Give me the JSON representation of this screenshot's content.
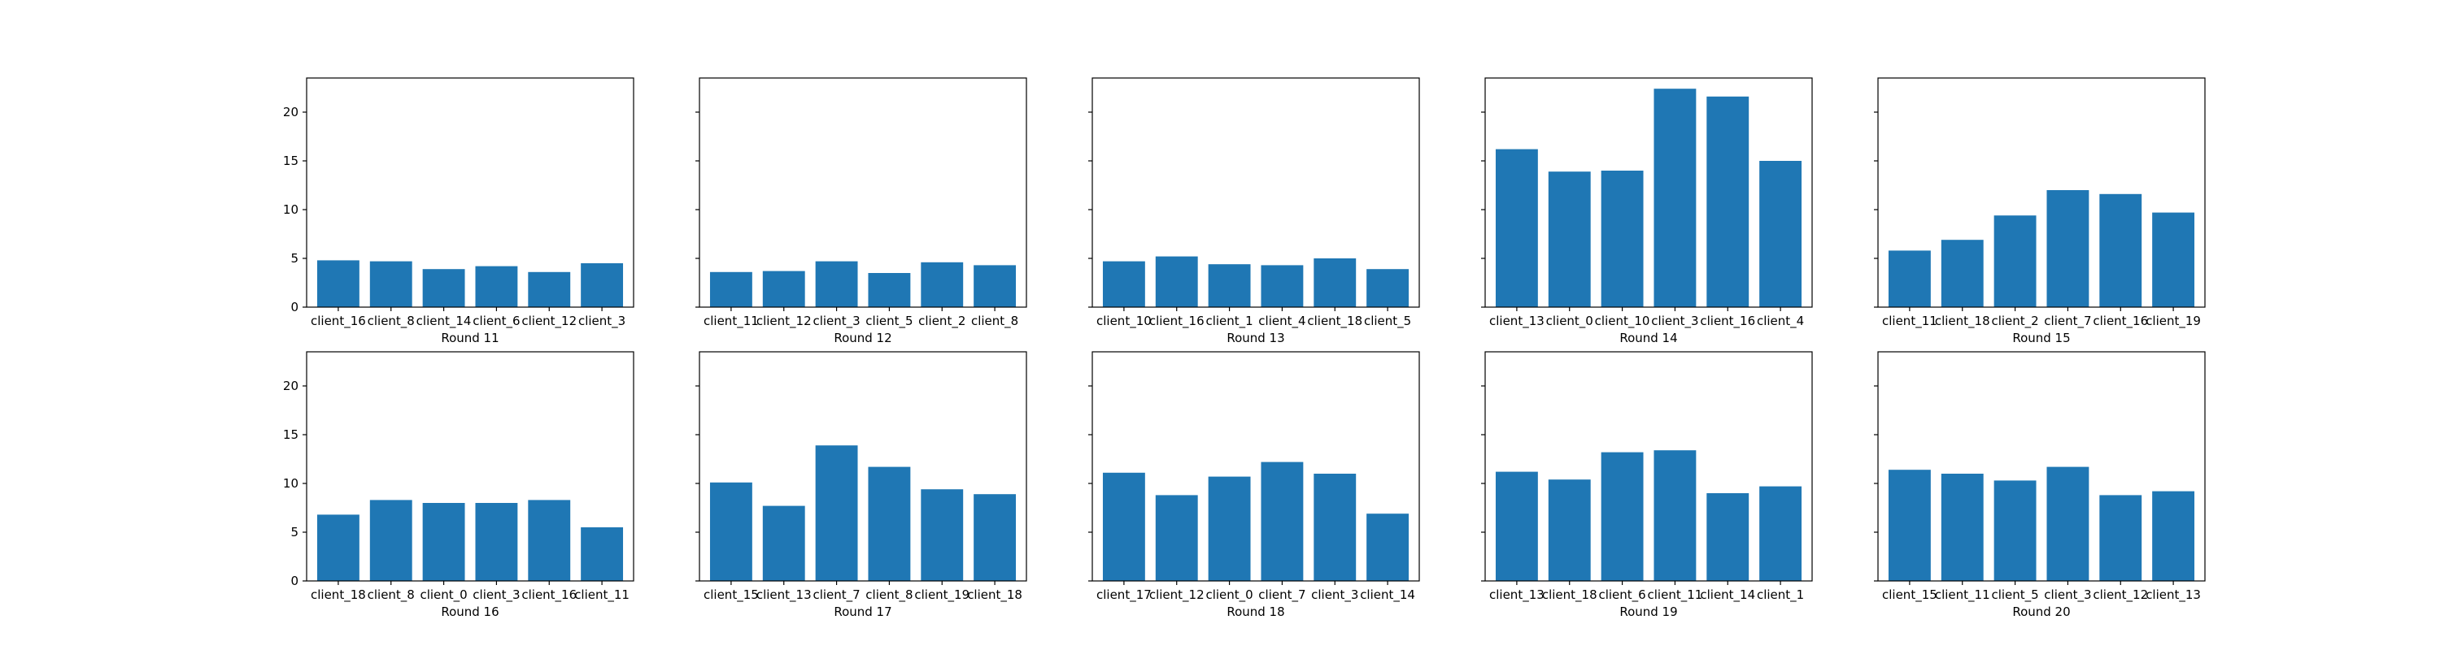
{
  "figure": {
    "background": "#ffffff",
    "bar_color": "#1f77b4",
    "layout": "2 rows x 5 columns",
    "shared_y_axis": true
  },
  "chart_data": [
    {
      "type": "bar",
      "xlabel": "Round 11",
      "ylabel": "",
      "ylim": [
        0,
        23.5
      ],
      "yticks": [
        0,
        5,
        10,
        15,
        20
      ],
      "categories": [
        "client_16",
        "client_8",
        "client_14",
        "client_6",
        "client_12",
        "client_3"
      ],
      "values": [
        4.8,
        4.7,
        3.9,
        4.2,
        3.6,
        4.5
      ]
    },
    {
      "type": "bar",
      "xlabel": "Round 12",
      "ylabel": "",
      "ylim": [
        0,
        23.5
      ],
      "yticks": [
        0,
        5,
        10,
        15,
        20
      ],
      "categories": [
        "client_11",
        "client_12",
        "client_3",
        "client_5",
        "client_2",
        "client_8"
      ],
      "values": [
        3.6,
        3.7,
        4.7,
        3.5,
        4.6,
        4.3
      ]
    },
    {
      "type": "bar",
      "xlabel": "Round 13",
      "ylabel": "",
      "ylim": [
        0,
        23.5
      ],
      "yticks": [
        0,
        5,
        10,
        15,
        20
      ],
      "categories": [
        "client_10",
        "client_16",
        "client_1",
        "client_4",
        "client_18",
        "client_5"
      ],
      "values": [
        4.7,
        5.2,
        4.4,
        4.3,
        5.0,
        3.9
      ]
    },
    {
      "type": "bar",
      "xlabel": "Round 14",
      "ylabel": "",
      "ylim": [
        0,
        23.5
      ],
      "yticks": [
        0,
        5,
        10,
        15,
        20
      ],
      "categories": [
        "client_13",
        "client_0",
        "client_10",
        "client_3",
        "client_16",
        "client_4"
      ],
      "values": [
        16.2,
        13.9,
        14.0,
        22.4,
        21.6,
        15.0
      ]
    },
    {
      "type": "bar",
      "xlabel": "Round 15",
      "ylabel": "",
      "ylim": [
        0,
        23.5
      ],
      "yticks": [
        0,
        5,
        10,
        15,
        20
      ],
      "categories": [
        "client_11",
        "client_18",
        "client_2",
        "client_7",
        "client_16",
        "client_19"
      ],
      "values": [
        5.8,
        6.9,
        9.4,
        12.0,
        11.6,
        9.7
      ]
    },
    {
      "type": "bar",
      "xlabel": "Round 16",
      "ylabel": "",
      "ylim": [
        0,
        23.5
      ],
      "yticks": [
        0,
        5,
        10,
        15,
        20
      ],
      "categories": [
        "client_18",
        "client_8",
        "client_0",
        "client_3",
        "client_16",
        "client_11"
      ],
      "values": [
        6.8,
        8.3,
        8.0,
        8.0,
        8.3,
        5.5
      ]
    },
    {
      "type": "bar",
      "xlabel": "Round 17",
      "ylabel": "",
      "ylim": [
        0,
        23.5
      ],
      "yticks": [
        0,
        5,
        10,
        15,
        20
      ],
      "categories": [
        "client_15",
        "client_13",
        "client_7",
        "client_8",
        "client_19",
        "client_18"
      ],
      "values": [
        10.1,
        7.7,
        13.9,
        11.7,
        9.4,
        8.9
      ]
    },
    {
      "type": "bar",
      "xlabel": "Round 18",
      "ylabel": "",
      "ylim": [
        0,
        23.5
      ],
      "yticks": [
        0,
        5,
        10,
        15,
        20
      ],
      "categories": [
        "client_17",
        "client_12",
        "client_0",
        "client_7",
        "client_3",
        "client_14"
      ],
      "values": [
        11.1,
        8.8,
        10.7,
        12.2,
        11.0,
        6.9
      ]
    },
    {
      "type": "bar",
      "xlabel": "Round 19",
      "ylabel": "",
      "ylim": [
        0,
        23.5
      ],
      "yticks": [
        0,
        5,
        10,
        15,
        20
      ],
      "categories": [
        "client_13",
        "client_18",
        "client_6",
        "client_11",
        "client_14",
        "client_1"
      ],
      "values": [
        11.2,
        10.4,
        13.2,
        13.4,
        9.0,
        9.7
      ]
    },
    {
      "type": "bar",
      "xlabel": "Round 20",
      "ylabel": "",
      "ylim": [
        0,
        23.5
      ],
      "yticks": [
        0,
        5,
        10,
        15,
        20
      ],
      "categories": [
        "client_15",
        "client_11",
        "client_5",
        "client_3",
        "client_12",
        "client_13"
      ],
      "values": [
        11.4,
        11.0,
        10.3,
        11.7,
        8.8,
        9.2
      ]
    }
  ]
}
